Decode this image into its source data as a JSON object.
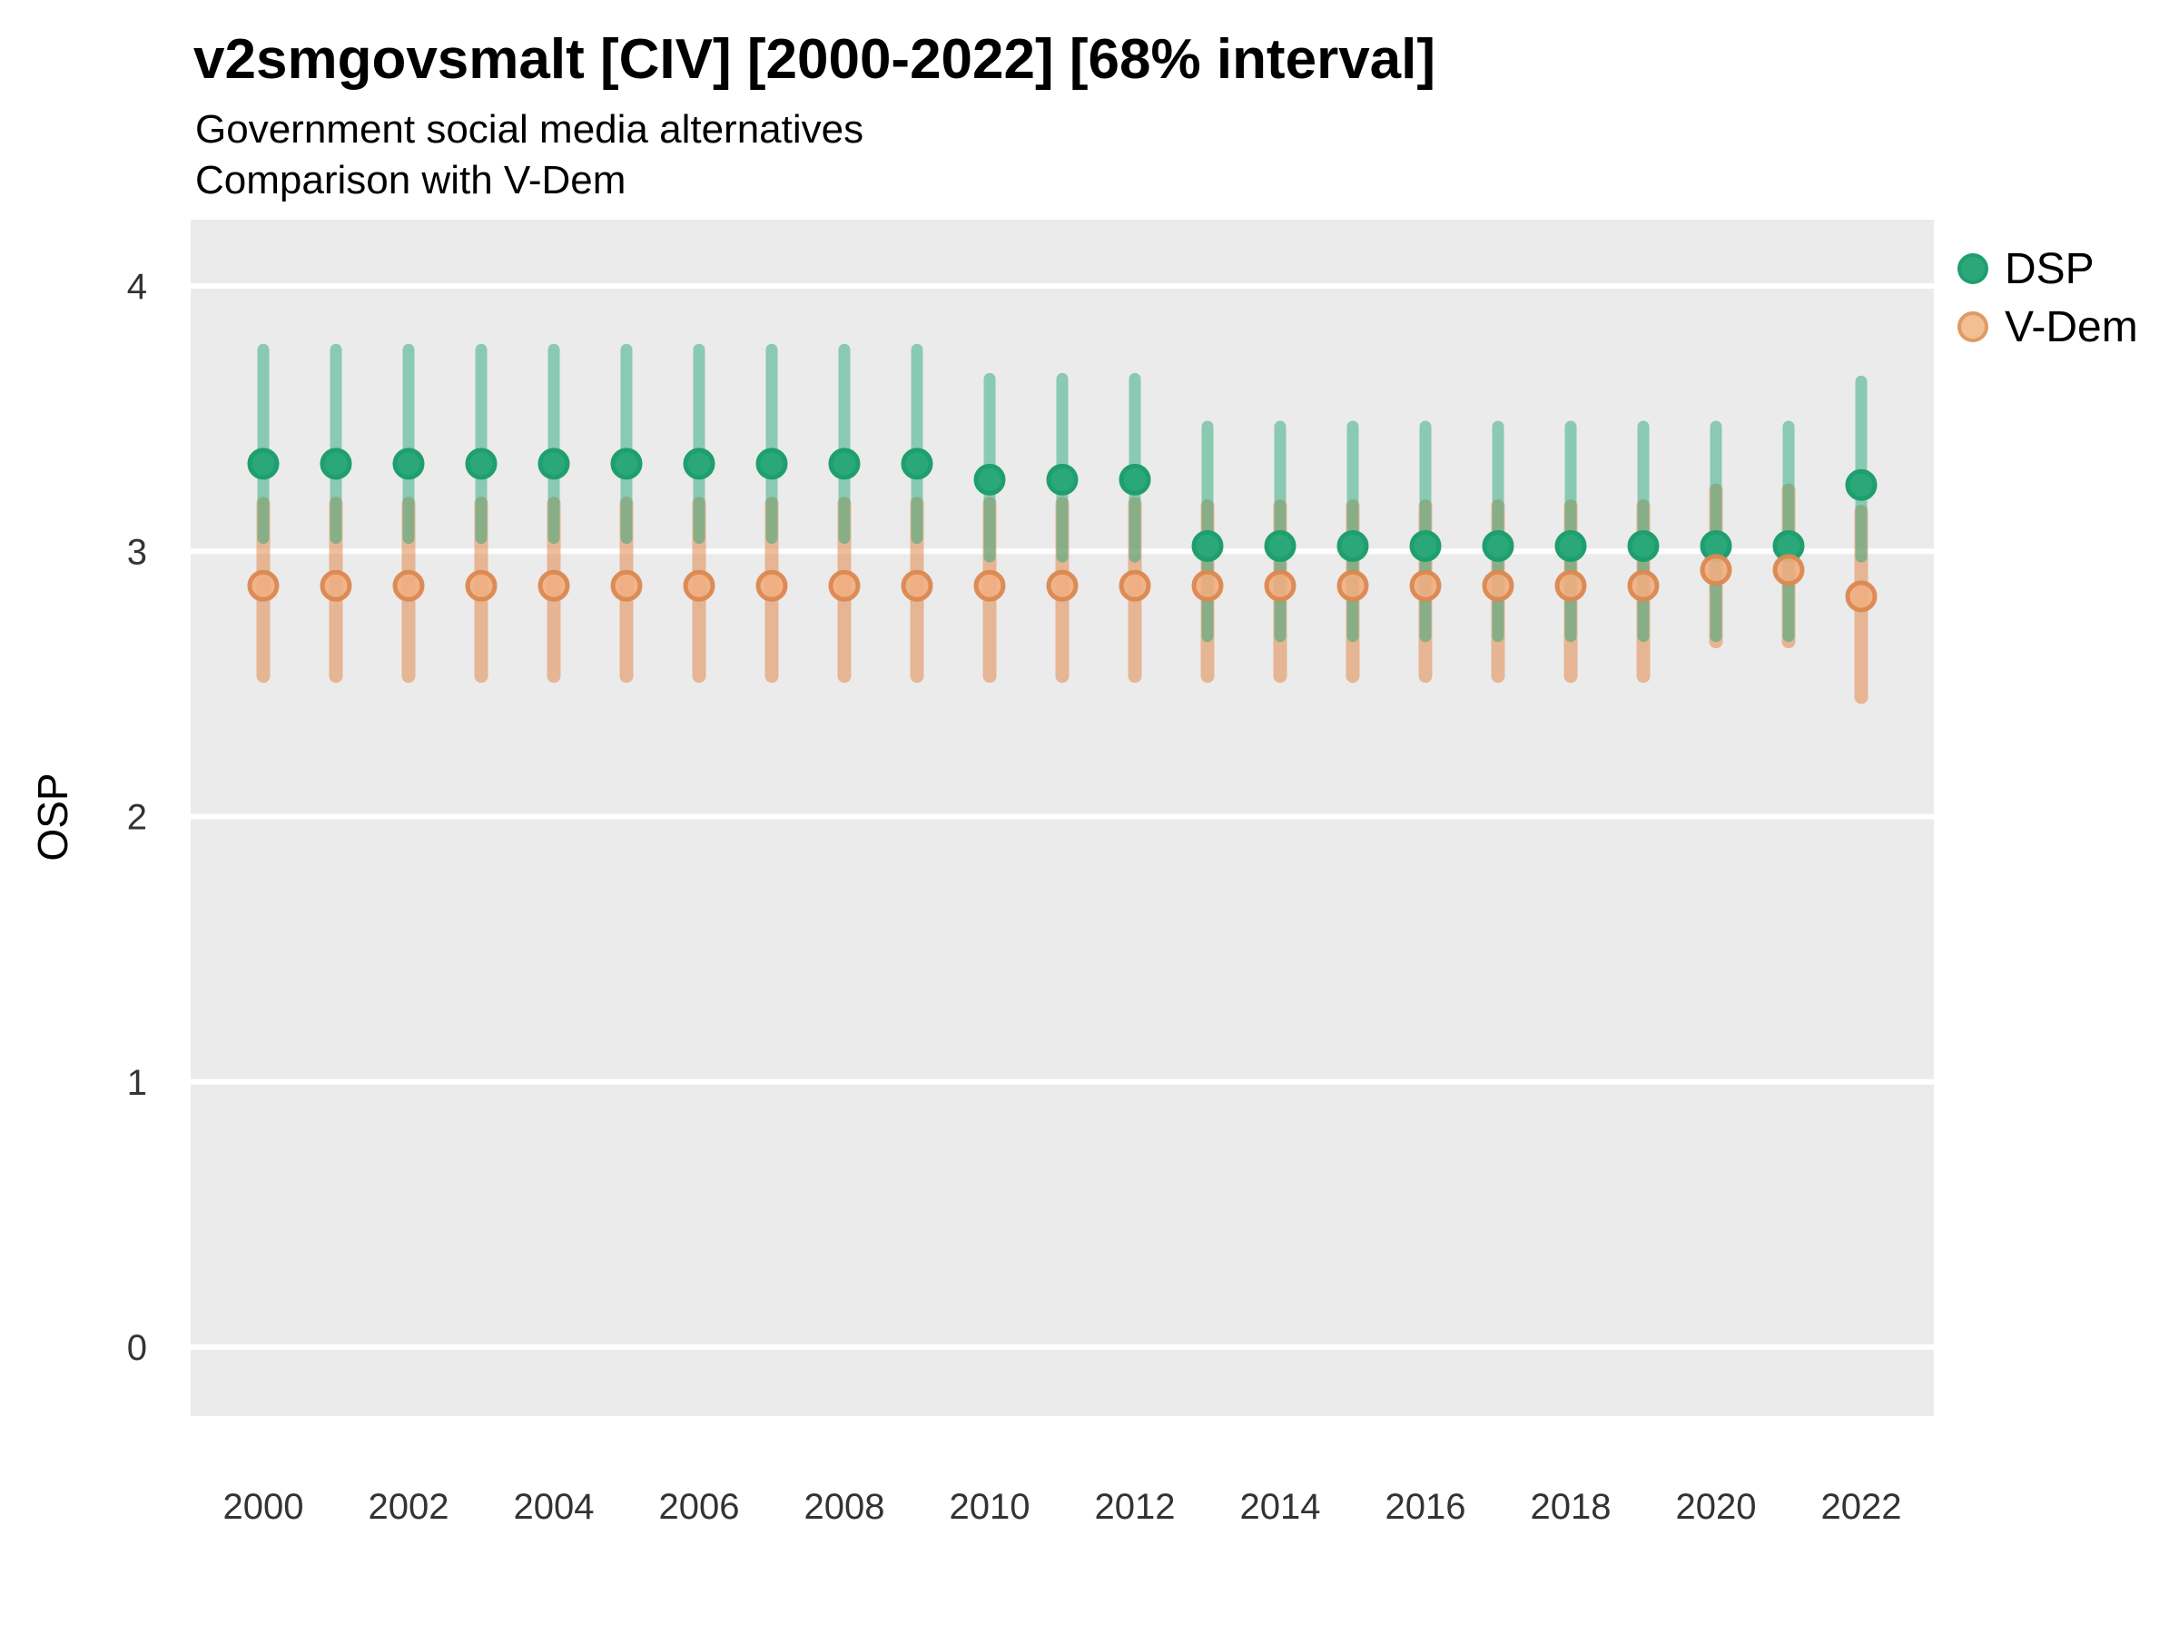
{
  "header": {
    "title": "v2smgovsmalt [CIV] [2000-2022] [68% interval]",
    "subtitle_line1": "Government social media alternatives",
    "subtitle_line2": "Comparison with V-Dem"
  },
  "legend": {
    "position": "right-top",
    "items": [
      {
        "label": "DSP",
        "fill": "#2AA87A",
        "stroke": "#1F9E6E"
      },
      {
        "label": "V-Dem",
        "fill": "#F2BE93",
        "stroke": "#E09A62"
      }
    ]
  },
  "colors": {
    "background": "#FFFFFF",
    "panel_background": "#EBEBEB",
    "gridline": "#FFFFFF",
    "tick_label": "#333333",
    "dsp_point_fill": "#2AA87A",
    "dsp_point_stroke": "#1F9E6E",
    "dsp_interval": "rgba(42,168,122,0.5)",
    "vdem_point_fill": "rgba(240,174,128,0.9)",
    "vdem_point_stroke": "rgba(219,136,80,0.95)",
    "vdem_interval": "rgba(226,136,77,0.55)"
  },
  "chart_data": {
    "type": "pointrange",
    "title": "v2smgovsmalt [CIV] [2000-2022] [68% interval]",
    "subtitle": "Government social media alternatives / Comparison with V-Dem",
    "interval_level": "68%",
    "xlabel": "",
    "ylabel": "OSP",
    "x_ticks": [
      2000,
      2002,
      2004,
      2006,
      2008,
      2010,
      2012,
      2014,
      2016,
      2018,
      2020,
      2022
    ],
    "y_ticks": [
      0,
      1,
      2,
      3,
      4
    ],
    "xlim": [
      1999,
      2023
    ],
    "ylim": [
      -0.26,
      4.25
    ],
    "grid": "major-horizontal-only",
    "legend_position": "right",
    "series": [
      {
        "name": "DSP",
        "points": [
          {
            "year": 2000,
            "est": 3.33,
            "lo": 3.05,
            "hi": 3.76
          },
          {
            "year": 2001,
            "est": 3.33,
            "lo": 3.05,
            "hi": 3.76
          },
          {
            "year": 2002,
            "est": 3.33,
            "lo": 3.05,
            "hi": 3.76
          },
          {
            "year": 2003,
            "est": 3.33,
            "lo": 3.05,
            "hi": 3.76
          },
          {
            "year": 2004,
            "est": 3.33,
            "lo": 3.05,
            "hi": 3.76
          },
          {
            "year": 2005,
            "est": 3.33,
            "lo": 3.05,
            "hi": 3.76
          },
          {
            "year": 2006,
            "est": 3.33,
            "lo": 3.05,
            "hi": 3.76
          },
          {
            "year": 2007,
            "est": 3.33,
            "lo": 3.05,
            "hi": 3.76
          },
          {
            "year": 2008,
            "est": 3.33,
            "lo": 3.05,
            "hi": 3.76
          },
          {
            "year": 2009,
            "est": 3.33,
            "lo": 3.05,
            "hi": 3.76
          },
          {
            "year": 2010,
            "est": 3.27,
            "lo": 2.98,
            "hi": 3.65
          },
          {
            "year": 2011,
            "est": 3.27,
            "lo": 2.98,
            "hi": 3.65
          },
          {
            "year": 2012,
            "est": 3.27,
            "lo": 2.98,
            "hi": 3.65
          },
          {
            "year": 2013,
            "est": 3.02,
            "lo": 2.68,
            "hi": 3.47
          },
          {
            "year": 2014,
            "est": 3.02,
            "lo": 2.68,
            "hi": 3.47
          },
          {
            "year": 2015,
            "est": 3.02,
            "lo": 2.68,
            "hi": 3.47
          },
          {
            "year": 2016,
            "est": 3.02,
            "lo": 2.68,
            "hi": 3.47
          },
          {
            "year": 2017,
            "est": 3.02,
            "lo": 2.68,
            "hi": 3.47
          },
          {
            "year": 2018,
            "est": 3.02,
            "lo": 2.68,
            "hi": 3.47
          },
          {
            "year": 2019,
            "est": 3.02,
            "lo": 2.68,
            "hi": 3.47
          },
          {
            "year": 2020,
            "est": 3.02,
            "lo": 2.68,
            "hi": 3.47
          },
          {
            "year": 2021,
            "est": 3.02,
            "lo": 2.68,
            "hi": 3.47
          },
          {
            "year": 2022,
            "est": 3.25,
            "lo": 2.98,
            "hi": 3.64
          }
        ]
      },
      {
        "name": "V-Dem",
        "points": [
          {
            "year": 2000,
            "est": 2.87,
            "lo": 2.53,
            "hi": 3.18
          },
          {
            "year": 2001,
            "est": 2.87,
            "lo": 2.53,
            "hi": 3.18
          },
          {
            "year": 2002,
            "est": 2.87,
            "lo": 2.53,
            "hi": 3.18
          },
          {
            "year": 2003,
            "est": 2.87,
            "lo": 2.53,
            "hi": 3.18
          },
          {
            "year": 2004,
            "est": 2.87,
            "lo": 2.53,
            "hi": 3.18
          },
          {
            "year": 2005,
            "est": 2.87,
            "lo": 2.53,
            "hi": 3.18
          },
          {
            "year": 2006,
            "est": 2.87,
            "lo": 2.53,
            "hi": 3.18
          },
          {
            "year": 2007,
            "est": 2.87,
            "lo": 2.53,
            "hi": 3.18
          },
          {
            "year": 2008,
            "est": 2.87,
            "lo": 2.53,
            "hi": 3.18
          },
          {
            "year": 2009,
            "est": 2.87,
            "lo": 2.53,
            "hi": 3.18
          },
          {
            "year": 2010,
            "est": 2.87,
            "lo": 2.53,
            "hi": 3.18
          },
          {
            "year": 2011,
            "est": 2.87,
            "lo": 2.53,
            "hi": 3.18
          },
          {
            "year": 2012,
            "est": 2.87,
            "lo": 2.53,
            "hi": 3.18
          },
          {
            "year": 2013,
            "est": 2.87,
            "lo": 2.53,
            "hi": 3.17
          },
          {
            "year": 2014,
            "est": 2.87,
            "lo": 2.53,
            "hi": 3.17
          },
          {
            "year": 2015,
            "est": 2.87,
            "lo": 2.53,
            "hi": 3.17
          },
          {
            "year": 2016,
            "est": 2.87,
            "lo": 2.53,
            "hi": 3.17
          },
          {
            "year": 2017,
            "est": 2.87,
            "lo": 2.53,
            "hi": 3.17
          },
          {
            "year": 2018,
            "est": 2.87,
            "lo": 2.53,
            "hi": 3.17
          },
          {
            "year": 2019,
            "est": 2.87,
            "lo": 2.53,
            "hi": 3.17
          },
          {
            "year": 2020,
            "est": 2.93,
            "lo": 2.66,
            "hi": 3.23
          },
          {
            "year": 2021,
            "est": 2.93,
            "lo": 2.66,
            "hi": 3.23
          },
          {
            "year": 2022,
            "est": 2.83,
            "lo": 2.45,
            "hi": 3.15
          }
        ]
      }
    ]
  }
}
